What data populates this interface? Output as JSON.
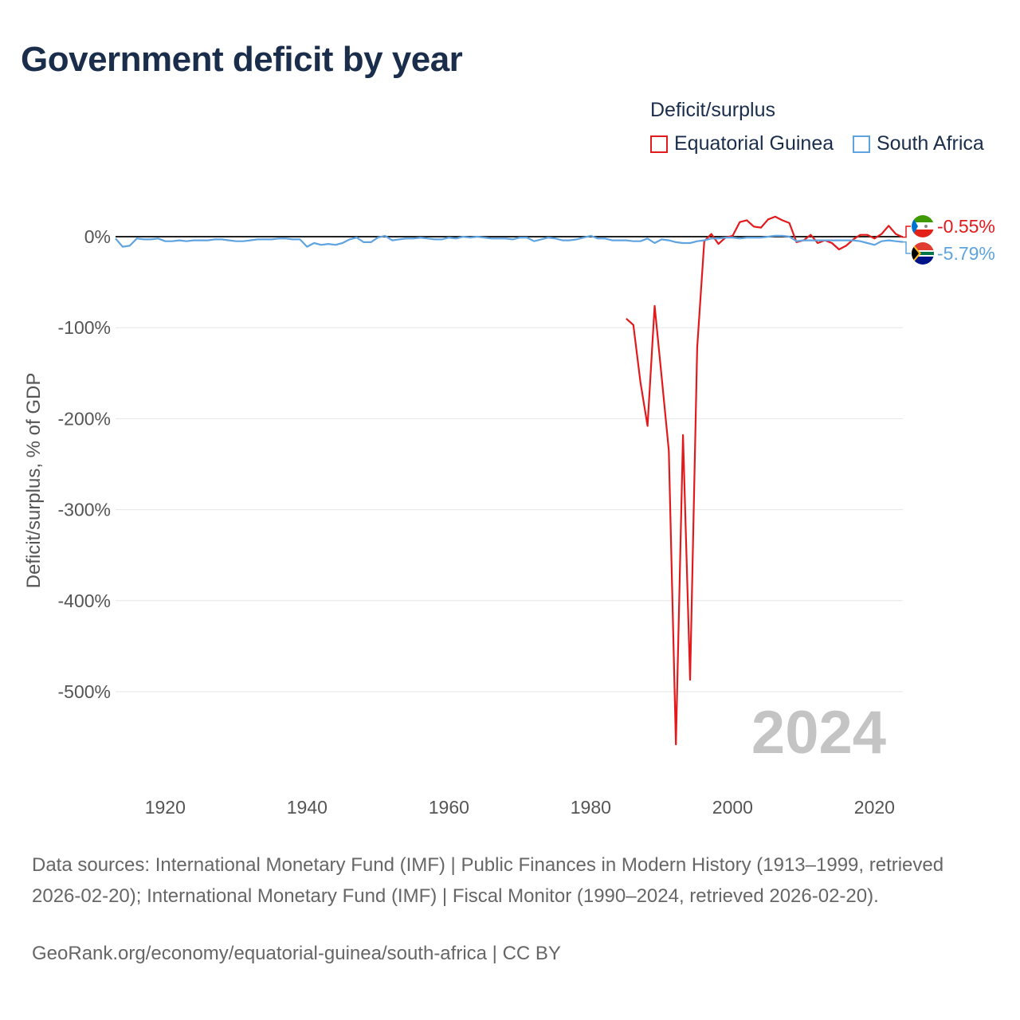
{
  "title": "Government deficit by year",
  "legend": {
    "title": "Deficit/surplus",
    "items": [
      {
        "name": "Equatorial Guinea",
        "color": "#e31a1c"
      },
      {
        "name": "South Africa",
        "color": "#5fa4e0"
      }
    ]
  },
  "footer": {
    "source": "Data sources: International Monetary Fund (IMF) | Public Finances in Modern History (1913–1999, retrieved 2026-02-20); International Monetary Fund (IMF) | Fiscal Monitor (1990–2024, retrieved 2026-02-20).",
    "credit": "GeoRank.org/economy/equatorial-guinea/south-africa | CC BY"
  },
  "chart_data": {
    "type": "line",
    "title": "Government deficit by year",
    "xlabel": "",
    "ylabel": "Deficit/surplus, % of GDP",
    "xlim": [
      1913,
      2024
    ],
    "ylim": [
      -600,
      40
    ],
    "grid": true,
    "year_label": "2024",
    "x_ticks": [
      1920,
      1940,
      1960,
      1980,
      2000,
      2020
    ],
    "x_tick_labels": [
      "1920",
      "1940",
      "1960",
      "1980",
      "2000",
      "2020"
    ],
    "y_ticks": [
      0,
      -100,
      -200,
      -300,
      -400,
      -500
    ],
    "y_tick_labels": [
      "0%",
      "-100%",
      "-200%",
      "-300%",
      "-400%",
      "-500%"
    ],
    "series": [
      {
        "name": "Equatorial Guinea",
        "color": "#e31a1c",
        "end_label": "-0.55%",
        "x": [
          1985,
          1986,
          1987,
          1988,
          1989,
          1990,
          1991,
          1992,
          1993,
          1994,
          1995,
          1996,
          1997,
          1998,
          1999,
          2000,
          2001,
          2002,
          2003,
          2004,
          2005,
          2006,
          2007,
          2008,
          2009,
          2010,
          2011,
          2012,
          2013,
          2014,
          2015,
          2016,
          2017,
          2018,
          2019,
          2020,
          2021,
          2022,
          2023,
          2024
        ],
        "values": [
          -90,
          -97,
          -160,
          -208,
          -76,
          -155,
          -235,
          -558,
          -218,
          -487,
          -122,
          -5,
          3,
          -8,
          -1,
          1,
          16,
          18,
          11,
          10,
          19,
          22,
          18,
          15,
          -6,
          -4,
          2,
          -7,
          -4,
          -7,
          -14,
          -10,
          -3,
          2,
          2,
          -2,
          3,
          12,
          3,
          -0.55
        ]
      },
      {
        "name": "South Africa",
        "color": "#5fa4e0",
        "end_label": "-5.79%",
        "x": [
          1913,
          1914,
          1915,
          1916,
          1917,
          1918,
          1919,
          1920,
          1921,
          1922,
          1923,
          1924,
          1925,
          1926,
          1927,
          1928,
          1929,
          1930,
          1931,
          1932,
          1933,
          1934,
          1935,
          1936,
          1937,
          1938,
          1939,
          1940,
          1941,
          1942,
          1943,
          1944,
          1945,
          1946,
          1947,
          1948,
          1949,
          1950,
          1951,
          1952,
          1953,
          1954,
          1955,
          1956,
          1957,
          1958,
          1959,
          1960,
          1961,
          1962,
          1963,
          1964,
          1965,
          1966,
          1967,
          1968,
          1969,
          1970,
          1971,
          1972,
          1973,
          1974,
          1975,
          1976,
          1977,
          1978,
          1979,
          1980,
          1981,
          1982,
          1983,
          1984,
          1985,
          1986,
          1987,
          1988,
          1989,
          1990,
          1991,
          1992,
          1993,
          1994,
          1995,
          1996,
          1997,
          1998,
          1999,
          2000,
          2001,
          2002,
          2003,
          2004,
          2005,
          2006,
          2007,
          2008,
          2009,
          2010,
          2011,
          2012,
          2013,
          2014,
          2015,
          2016,
          2017,
          2018,
          2019,
          2020,
          2021,
          2022,
          2023,
          2024
        ],
        "values": [
          -2,
          -11,
          -10,
          -2,
          -3,
          -3,
          -2,
          -5,
          -5,
          -4,
          -5,
          -4,
          -4,
          -4,
          -3,
          -3,
          -4,
          -5,
          -5,
          -4,
          -3,
          -3,
          -3,
          -2,
          -2,
          -3,
          -3,
          -11,
          -7,
          -9,
          -8,
          -9,
          -7,
          -3,
          -1,
          -6,
          -6,
          -1,
          1,
          -4,
          -3,
          -2,
          -2,
          -1,
          -2,
          -3,
          -3,
          -1,
          -2,
          0,
          -1,
          0,
          -1,
          -2,
          -2,
          -2,
          -3,
          -1,
          -1,
          -5,
          -3,
          -1,
          -2,
          -4,
          -4,
          -3,
          -1,
          1,
          -2,
          -2,
          -4,
          -4,
          -4,
          -5,
          -5,
          -2,
          -7,
          -3,
          -4,
          -6,
          -7,
          -7,
          -5,
          -4,
          -2,
          -2,
          -1,
          -1,
          -2,
          -1,
          -1,
          -1,
          0,
          1,
          1,
          0,
          -5,
          -4,
          -4,
          -4,
          -4,
          -4,
          -4,
          -4,
          -4,
          -5,
          -7,
          -9,
          -5,
          -4,
          -5,
          -5.79
        ]
      }
    ]
  }
}
